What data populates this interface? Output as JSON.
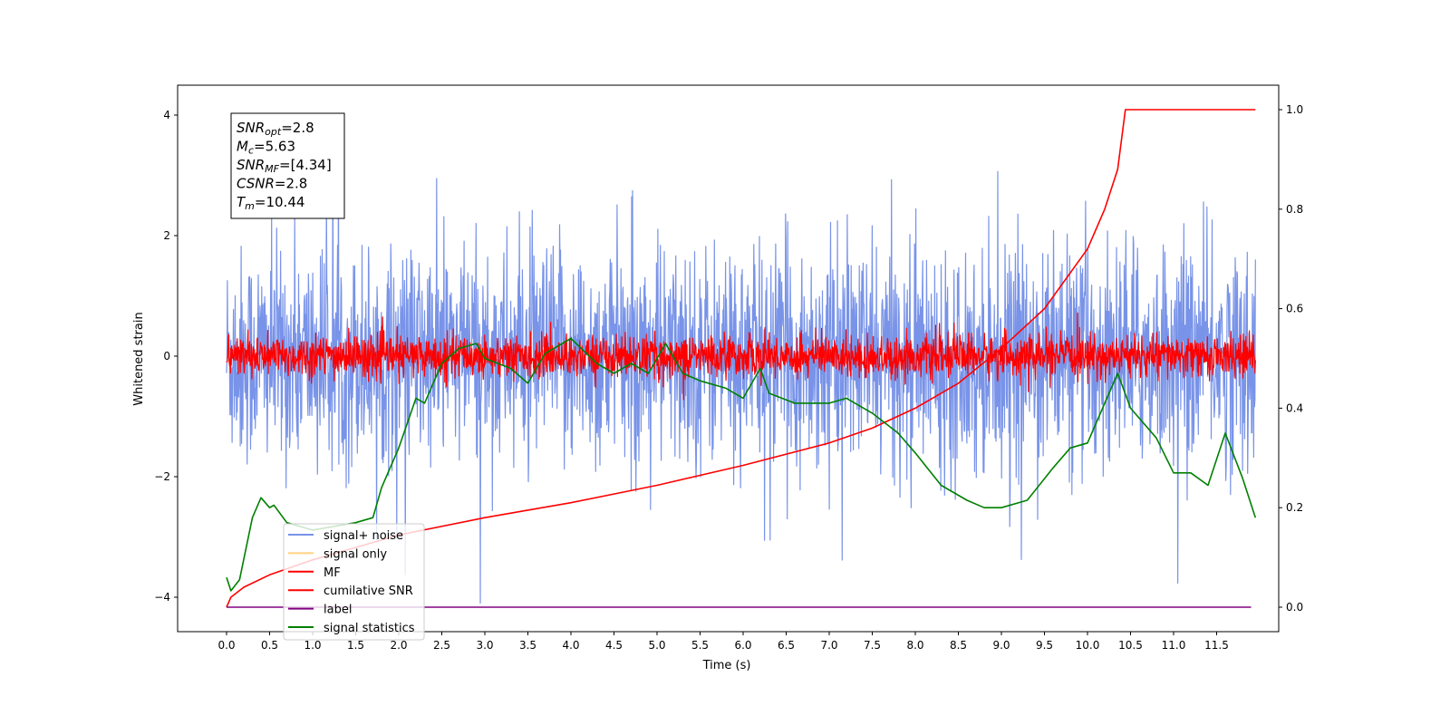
{
  "chart_data": {
    "type": "line",
    "xlabel": "Time (s)",
    "ylabel": "Whitened strain",
    "xlim": [
      -0.58,
      12.2
    ],
    "ylim": [
      -4.57,
      4.5
    ],
    "y2lim": [
      -0.055,
      1.045
    ],
    "xticks": [
      "0.0",
      "0.5",
      "1.0",
      "1.5",
      "2.0",
      "2.5",
      "3.0",
      "3.5",
      "4.0",
      "4.5",
      "5.0",
      "5.5",
      "6.0",
      "6.5",
      "7.0",
      "7.5",
      "8.0",
      "8.5",
      "9.0",
      "9.5",
      "10.0",
      "10.5",
      "11.0",
      "11.5"
    ],
    "yticks": [
      "−4",
      "−2",
      "0",
      "2",
      "4"
    ],
    "y2ticks": [
      "0.0",
      "0.2",
      "0.4",
      "0.6",
      "0.8",
      "1.0"
    ],
    "annotation": {
      "lines": [
        {
          "main": "SNR",
          "sub": "opt",
          "rest": "=2.8"
        },
        {
          "main": "M",
          "sub": "c",
          "rest": "=5.63"
        },
        {
          "main": "SNR",
          "sub": "MF",
          "rest": "=[4.34]"
        },
        {
          "main": "CSNR",
          "sub": "",
          "rest": "=2.8"
        },
        {
          "main": "T",
          "sub": "m",
          "rest": "=10.44"
        }
      ]
    },
    "legend": {
      "placement": "lower-left",
      "entries": [
        {
          "label": "signal+ noise",
          "color": "#7893e8"
        },
        {
          "label": "signal only",
          "color": "#ffd27f"
        },
        {
          "label": "MF",
          "color": "#ff0000"
        },
        {
          "label": "cumilative SNR",
          "color": "#ff0000"
        },
        {
          "label": "label",
          "color": "#800080"
        },
        {
          "label": "signal statistics",
          "color": "#008000"
        }
      ]
    },
    "series": [
      {
        "name": "signal+ noise",
        "axis": "left",
        "color": "#7893e8",
        "generated": "noise",
        "t_range": [
          0,
          11.95
        ],
        "std": 0.9,
        "max_abs": 4.1
      },
      {
        "name": "MF",
        "axis": "left",
        "color": "#ff0000",
        "generated": "noise",
        "t_range": [
          0,
          11.95
        ],
        "std": 0.17,
        "max_abs": 0.95
      },
      {
        "name": "cumilative SNR",
        "axis": "right",
        "color": "#ff0000",
        "x": [
          0,
          0.05,
          0.2,
          0.5,
          1,
          2,
          3,
          4,
          5,
          6,
          7,
          7.5,
          8,
          8.5,
          9,
          9.5,
          10,
          10.2,
          10.35,
          10.44,
          11.95
        ],
        "y": [
          0,
          0.02,
          0.04,
          0.065,
          0.095,
          0.145,
          0.18,
          0.21,
          0.245,
          0.285,
          0.33,
          0.36,
          0.4,
          0.45,
          0.52,
          0.6,
          0.72,
          0.8,
          0.88,
          1.0,
          1.0
        ]
      },
      {
        "name": "label",
        "axis": "right",
        "color": "#800080",
        "x": [
          0,
          11.9
        ],
        "y": [
          0,
          0
        ]
      },
      {
        "name": "signal statistics",
        "axis": "right",
        "color": "#008000",
        "x": [
          0,
          0.05,
          0.15,
          0.3,
          0.4,
          0.5,
          0.55,
          0.7,
          1.0,
          1.5,
          1.7,
          1.8,
          2.0,
          2.2,
          2.3,
          2.5,
          2.7,
          2.9,
          3.0,
          3.3,
          3.5,
          3.7,
          4.0,
          4.3,
          4.5,
          4.7,
          4.9,
          5.1,
          5.3,
          5.5,
          5.8,
          6.0,
          6.2,
          6.3,
          6.6,
          7.0,
          7.2,
          7.5,
          7.8,
          8.0,
          8.3,
          8.6,
          8.8,
          9.0,
          9.3,
          9.6,
          9.8,
          10.0,
          10.2,
          10.35,
          10.5,
          10.8,
          11.0,
          11.2,
          11.4,
          11.6,
          11.8,
          11.95
        ],
        "y": [
          0.06,
          0.033,
          0.055,
          0.18,
          0.22,
          0.2,
          0.205,
          0.17,
          0.155,
          0.17,
          0.18,
          0.24,
          0.32,
          0.42,
          0.41,
          0.49,
          0.52,
          0.53,
          0.5,
          0.48,
          0.45,
          0.51,
          0.54,
          0.49,
          0.47,
          0.49,
          0.47,
          0.53,
          0.47,
          0.455,
          0.44,
          0.42,
          0.48,
          0.43,
          0.41,
          0.41,
          0.42,
          0.39,
          0.35,
          0.31,
          0.245,
          0.215,
          0.2,
          0.2,
          0.215,
          0.28,
          0.32,
          0.33,
          0.41,
          0.47,
          0.4,
          0.34,
          0.27,
          0.27,
          0.245,
          0.35,
          0.26,
          0.18
        ]
      }
    ]
  }
}
